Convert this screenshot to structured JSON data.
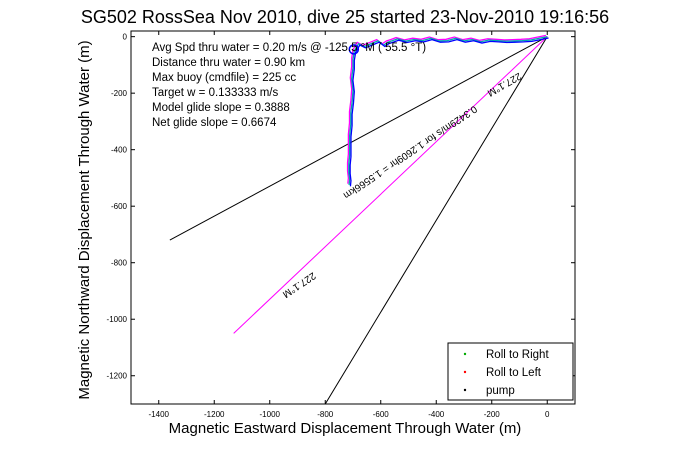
{
  "title": "SG502 RossSea Nov 2010, dive 25 started 23-Nov-2010 19:16:56",
  "chart_data": {
    "type": "line",
    "xlabel": "Magnetic Eastward Displacement Through Water (m)",
    "ylabel": "Magnetic Northward Displacement Through Water (m)",
    "xlim": [
      -1500,
      100
    ],
    "ylim": [
      -1300,
      20
    ],
    "xticks": [
      -1400,
      -1200,
      -1000,
      -800,
      -600,
      -400,
      -200,
      0
    ],
    "yticks": [
      0,
      -200,
      -400,
      -600,
      -800,
      -1000,
      -1200
    ],
    "grid": false,
    "info_lines": [
      "Avg Spd thru water =  0.20 m/s @ -125.5 °M ( 55.5 °T)",
      "Distance thru water =  0.90 km",
      "Max buoy (cmdfile) = 225 cc",
      "Target w = 0.133333 m/s",
      "Model glide slope = 0.3888",
      "Net glide slope = 0.6674"
    ],
    "reference_lines": [
      {
        "x": [
          0,
          -1360
        ],
        "y": [
          0,
          -720
        ],
        "color": "#000000"
      },
      {
        "x": [
          0,
          -800
        ],
        "y": [
          0,
          -1300
        ],
        "color": "#000000"
      },
      {
        "x": [
          0,
          -1130
        ],
        "y": [
          0,
          -1050
        ],
        "color": "#ff00ff"
      }
    ],
    "line_labels": [
      {
        "text": "227.1°M",
        "x": -160,
        "y": -160,
        "angle": -30
      },
      {
        "text": "0.3429m/s for 1.2609hr = 1.5566km",
        "x": -500,
        "y": -400,
        "angle": -34
      },
      {
        "text": "227.1°M",
        "x": -900,
        "y": -870,
        "angle": -34
      }
    ],
    "track": {
      "x": [
        0,
        -20,
        -40,
        -60,
        -90,
        -120,
        -150,
        -180,
        -210,
        -240,
        -270,
        -300,
        -330,
        -360,
        -390,
        -420,
        -450,
        -480,
        -510,
        -540,
        -560,
        -575,
        -590,
        -610,
        -635,
        -660,
        -680,
        -695,
        -700,
        -700,
        -705,
        -700,
        -703,
        -708,
        -708,
        -712,
        -712,
        -712,
        -715,
        -715,
        -712,
        -714
      ],
      "y": [
        0,
        -4,
        -8,
        -12,
        -14,
        -15,
        -16,
        -14,
        -12,
        -18,
        -10,
        -15,
        -6,
        -14,
        -15,
        -6,
        -14,
        -10,
        -16,
        -8,
        -15,
        -20,
        -30,
        -15,
        -25,
        -35,
        -25,
        -50,
        -80,
        -110,
        -150,
        -190,
        -230,
        -270,
        -310,
        -350,
        -390,
        -420,
        -450,
        -480,
        -505,
        -525
      ],
      "colors": [
        "#ff00ff",
        "#00aaaa",
        "#0000ff"
      ]
    },
    "start_marker": {
      "x": -697,
      "y": -45
    },
    "legend": [
      {
        "label": "Roll to Right",
        "color": "#00aa00"
      },
      {
        "label": "Roll to Left",
        "color": "#ff0000"
      },
      {
        "label": "pump",
        "color": "#000000"
      }
    ],
    "legend_position": "bottom-right"
  }
}
